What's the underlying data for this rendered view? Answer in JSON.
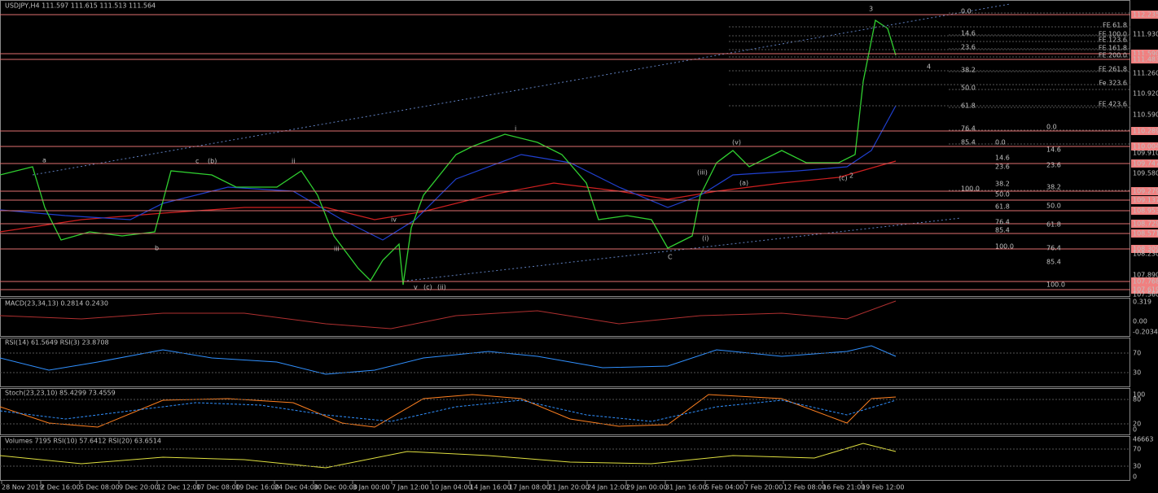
{
  "header": {
    "main": "USDJPY,H4  111.597 111.615 111.513 111.564",
    "macd": "MACD(23,34,13) 0.2814 0.2430",
    "rsi": "RSI(14) 61.5649  RSI(3) 23.8708",
    "stoch": "Stoch(23,23,10) 85.4299 73.4559",
    "volumes": "Volumes 7195  RSI(10) 57.6412  RSI(20) 63.6514"
  },
  "price_axis": [
    {
      "label": "112.235",
      "level": true
    },
    {
      "label": "111.930",
      "level": false
    },
    {
      "label": "111.590",
      "level": true
    },
    {
      "label": "111.483",
      "level": true
    },
    {
      "label": "111.260",
      "level": false
    },
    {
      "label": "110.920",
      "level": false
    },
    {
      "label": "110.590",
      "level": false
    },
    {
      "label": "110.289",
      "level": true
    },
    {
      "label": "110.004",
      "level": true
    },
    {
      "label": "109.910",
      "level": false
    },
    {
      "label": "109.747",
      "level": true
    },
    {
      "label": "109.580",
      "level": false
    },
    {
      "label": "109.279",
      "level": true
    },
    {
      "label": "109.137",
      "level": true
    },
    {
      "label": "108.953",
      "level": true
    },
    {
      "label": "108.729",
      "level": true
    },
    {
      "label": "108.571",
      "level": true
    },
    {
      "label": "108.309",
      "level": true
    },
    {
      "label": "108.230",
      "level": false
    },
    {
      "label": "107.890",
      "level": false
    },
    {
      "label": "107.768",
      "level": true
    },
    {
      "label": "107.619",
      "level": true
    },
    {
      "label": "107.560",
      "level": false
    }
  ],
  "fib_extension": [
    "FE 61.8",
    "FE 100.0",
    "FE 123.6",
    "FE 161.8",
    "FE 200.0",
    "FE 261.8",
    "Fe 323.6",
    "FE 423.6"
  ],
  "fib_retracement": [
    "0.0",
    "14.6",
    "23.6",
    "38.2",
    "50.0",
    "61.8",
    "76.4",
    "85.4",
    "100.0"
  ],
  "macd_axis": [
    "0.319",
    "0.00",
    "-0.2034"
  ],
  "rsi_axis": [
    "70",
    "30"
  ],
  "stoch_axis": [
    "100",
    "80",
    "20",
    "0"
  ],
  "volume_axis": [
    "46663",
    "70",
    "30",
    "0"
  ],
  "time_axis": [
    "28 Nov 2019",
    "2 Dec 16:00",
    "5 Dec 08:00",
    "9 Dec 20:00",
    "12 Dec 12:00",
    "17 Dec 08:00",
    "19 Dec 16:00",
    "24 Dec 04:00",
    "30 Dec 00:00",
    "3 Jan 00:00",
    "7 Jan 12:00",
    "10 Jan 04:00",
    "14 Jan 16:00",
    "17 Jan 08:00",
    "21 Jan 20:00",
    "24 Jan 12:00",
    "29 Jan 00:00",
    "31 Jan 16:00",
    "5 Feb 04:00",
    "7 Feb 20:00",
    "12 Feb 08:00",
    "16 Feb 21:00",
    "19 Feb 12:00"
  ],
  "wave_labels": [
    "3",
    "4",
    "a",
    "b",
    "c",
    "(b)",
    "ii",
    "iii",
    "iv",
    "v",
    "(c)",
    "(ii)",
    "i",
    "C",
    "(i)",
    "(v)",
    "(iii)",
    "(a)",
    "(c)",
    "2"
  ]
}
